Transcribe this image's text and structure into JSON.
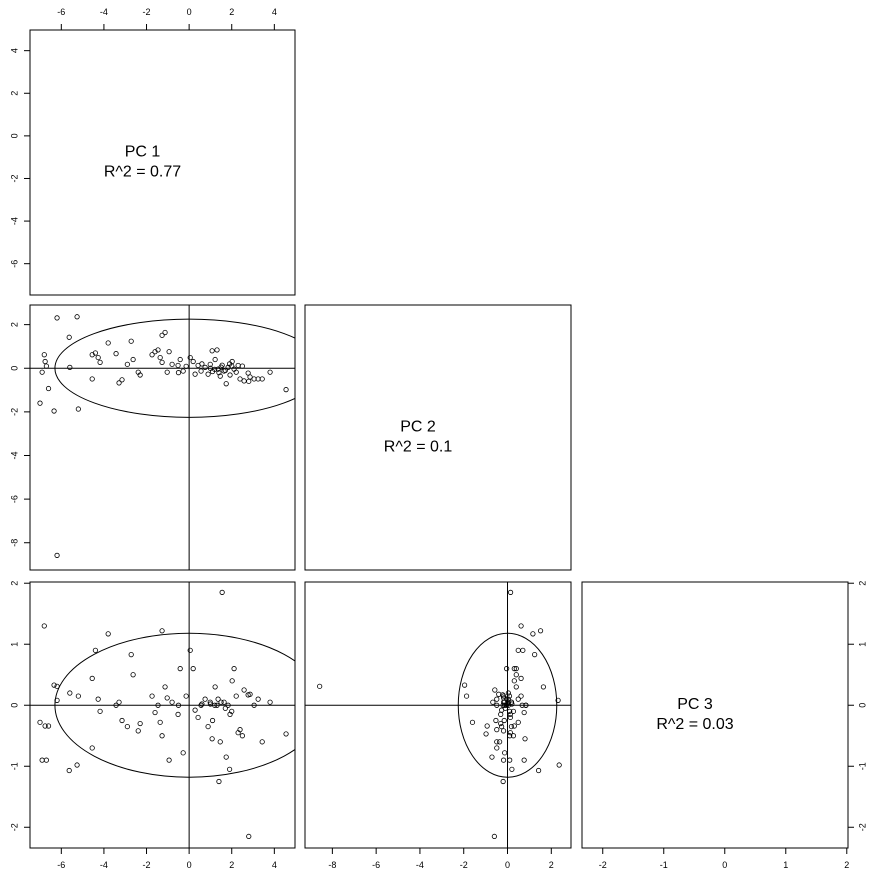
{
  "chart_data": {
    "type": "pairs",
    "variables": [
      {
        "name": "PC 1",
        "r2_label": "R^2 = 0.77",
        "lim": [
          -7.47,
          4.97
        ],
        "ticks": [
          -6,
          -4,
          -2,
          0,
          2,
          4
        ],
        "ellipse_radius": 6.3,
        "values": [
          -7.0,
          -6.8,
          -6.76,
          -6.9,
          -6.6,
          -6.34,
          -6.2,
          -6.2,
          -6.7,
          -5.63,
          -5.26,
          -5.2,
          -5.6,
          -4.55,
          -4.4,
          -4.55,
          -4.27,
          -4.18,
          -3.8,
          -3.43,
          -3.29,
          -3.15,
          -2.9,
          -2.72,
          -2.63,
          -2.39,
          -2.3,
          -1.74,
          -1.6,
          -1.46,
          -1.36,
          -1.27,
          -1.13,
          -1.27,
          -1.03,
          -0.94,
          -0.8,
          -0.52,
          -0.42,
          -0.28,
          -0.14,
          0.05,
          0.19,
          0.28,
          0.42,
          0.56,
          0.75,
          0.89,
          0.99,
          1.08,
          1.22,
          1.31,
          1.36,
          1.46,
          1.55,
          1.64,
          1.74,
          1.83,
          1.92,
          2.02,
          2.11,
          2.21,
          2.3,
          2.39,
          2.58,
          2.77,
          2.8,
          2.86,
          3.05,
          3.24,
          3.43,
          3.8,
          4.55,
          1.5,
          1.7,
          1.2,
          2.0,
          1.0,
          1.9,
          1.4,
          2.5,
          0.6,
          -0.5,
          1.1
        ]
      },
      {
        "name": "PC 2",
        "r2_label": "R^2 = 0.1",
        "lim": [
          -9.25,
          2.9
        ],
        "ticks": [
          -8,
          -6,
          -4,
          -2,
          0,
          2
        ],
        "ellipse_radius": 2.25,
        "values": [
          -1.6,
          0.62,
          0.31,
          -0.18,
          -0.93,
          -1.96,
          2.31,
          -8.58,
          0.1,
          1.42,
          2.36,
          -1.87,
          0.04,
          0.62,
          0.7,
          -0.49,
          0.49,
          0.27,
          1.16,
          0.67,
          -0.67,
          -0.53,
          0.18,
          1.24,
          0.4,
          -0.18,
          -0.31,
          0.62,
          0.76,
          0.84,
          0.49,
          1.51,
          1.64,
          0.27,
          -0.18,
          0.76,
          0.18,
          0.13,
          0.4,
          -0.13,
          0.09,
          0.49,
          0.31,
          -0.27,
          0.13,
          -0.13,
          0.04,
          -0.27,
          0.18,
          0.8,
          0.4,
          0.84,
          -0.04,
          -0.36,
          0.14,
          -0.13,
          -0.71,
          0.04,
          -0.31,
          0.31,
          -0.04,
          -0.18,
          0.13,
          -0.49,
          -0.58,
          -0.22,
          -0.6,
          -0.4,
          -0.49,
          -0.49,
          -0.49,
          -0.18,
          -0.98,
          0.05,
          -0.1,
          -0.05,
          0.1,
          0.0,
          0.2,
          -0.2,
          0.1,
          0.2,
          -0.2,
          -0.15
        ]
      },
      {
        "name": "PC 3",
        "r2_label": "R^2 = 0.03",
        "lim": [
          -2.34,
          2.02
        ],
        "ticks": [
          -2,
          -1,
          0,
          1,
          2
        ],
        "ellipse_radius": 1.18,
        "values": [
          -0.28,
          1.3,
          -0.34,
          -0.9,
          -0.34,
          0.33,
          0.08,
          0.31,
          -0.9,
          -1.07,
          -0.98,
          0.15,
          0.2,
          0.44,
          0.9,
          -0.7,
          0.1,
          -0.1,
          1.17,
          0.0,
          0.05,
          -0.25,
          -0.35,
          0.83,
          0.5,
          -0.42,
          -0.3,
          0.15,
          -0.12,
          0.0,
          -0.28,
          1.22,
          0.3,
          -0.5,
          0.12,
          -0.9,
          0.05,
          -0.15,
          0.6,
          -0.78,
          0.15,
          0.9,
          0.6,
          -0.08,
          -0.2,
          0.0,
          0.1,
          -0.35,
          0.05,
          -0.55,
          0.3,
          0.0,
          0.1,
          -0.6,
          1.85,
          0.05,
          -0.85,
          0.0,
          -0.15,
          0.4,
          0.6,
          0.15,
          -0.45,
          -0.4,
          0.25,
          0.17,
          -2.15,
          0.18,
          0.0,
          0.1,
          -0.6,
          0.05,
          -0.47,
          0.05,
          -0.05,
          0.0,
          -0.1,
          0.02,
          -1.05,
          -1.25,
          -0.5,
          0.02,
          0.0,
          -0.25
        ]
      }
    ]
  }
}
